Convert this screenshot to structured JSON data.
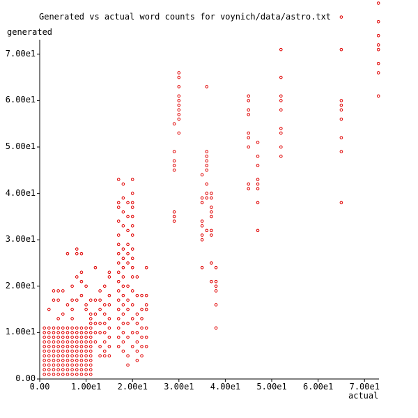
{
  "chart_data": {
    "type": "scatter",
    "title": "Generated vs actual word counts for voynich/data/astro.txt",
    "xlabel": "actual",
    "ylabel": "generated",
    "xlim": [
      0,
      73
    ],
    "ylim": [
      0,
      73
    ],
    "grid": false,
    "legend": null,
    "marker": "open-circle",
    "marker_color": "#e00000",
    "x_ticks": [
      "0.00",
      "1.00e1",
      "2.00e1",
      "3.00e1",
      "4.00e1",
      "5.00e1",
      "6.00e1",
      "7.00e1"
    ],
    "y_ticks": [
      "0.00",
      "1.00e1",
      "2.00e1",
      "3.00e1",
      "4.00e1",
      "5.00e1",
      "6.00e1",
      "7.00e1"
    ],
    "dense_region": {
      "description": "Near-complete integer grid of points for actual 1-11, generated 1-11",
      "x_range": [
        1,
        11
      ],
      "y_range": [
        1,
        11
      ]
    },
    "points": [
      [
        2,
        15
      ],
      [
        3,
        17
      ],
      [
        3,
        19
      ],
      [
        4,
        17
      ],
      [
        4,
        19
      ],
      [
        4,
        13
      ],
      [
        5,
        14
      ],
      [
        5,
        19
      ],
      [
        6,
        16
      ],
      [
        6,
        27
      ],
      [
        7,
        17
      ],
      [
        7,
        20
      ],
      [
        7,
        15
      ],
      [
        7,
        13
      ],
      [
        8,
        22
      ],
      [
        8,
        27
      ],
      [
        8,
        28
      ],
      [
        8,
        17
      ],
      [
        9,
        18
      ],
      [
        9,
        21
      ],
      [
        9,
        23
      ],
      [
        9,
        27
      ],
      [
        10,
        16
      ],
      [
        10,
        20
      ],
      [
        10,
        15
      ],
      [
        11,
        17
      ],
      [
        11,
        14
      ],
      [
        11,
        13
      ],
      [
        11,
        12
      ],
      [
        12,
        24
      ],
      [
        12,
        17
      ],
      [
        12,
        14
      ],
      [
        12,
        12
      ],
      [
        12,
        10
      ],
      [
        12,
        8
      ],
      [
        13,
        17
      ],
      [
        13,
        19
      ],
      [
        13,
        15
      ],
      [
        13,
        12
      ],
      [
        13,
        10
      ],
      [
        13,
        7
      ],
      [
        13,
        5
      ],
      [
        14,
        16
      ],
      [
        14,
        14
      ],
      [
        14,
        12
      ],
      [
        14,
        10
      ],
      [
        14,
        8
      ],
      [
        14,
        6
      ],
      [
        14,
        5
      ],
      [
        14,
        20
      ],
      [
        15,
        23
      ],
      [
        15,
        18
      ],
      [
        15,
        16
      ],
      [
        15,
        13
      ],
      [
        15,
        11
      ],
      [
        15,
        9
      ],
      [
        15,
        7
      ],
      [
        15,
        5
      ],
      [
        15,
        22
      ],
      [
        17,
        43
      ],
      [
        17,
        38
      ],
      [
        17,
        37
      ],
      [
        17,
        34
      ],
      [
        17,
        31
      ],
      [
        17,
        29
      ],
      [
        17,
        27
      ],
      [
        17,
        25
      ],
      [
        17,
        23
      ],
      [
        17,
        21
      ],
      [
        17,
        19
      ],
      [
        17,
        17
      ],
      [
        17,
        15
      ],
      [
        17,
        13
      ],
      [
        17,
        11
      ],
      [
        17,
        9
      ],
      [
        17,
        7
      ],
      [
        18,
        42
      ],
      [
        18,
        39
      ],
      [
        18,
        36
      ],
      [
        18,
        33
      ],
      [
        18,
        28
      ],
      [
        18,
        26
      ],
      [
        18,
        24
      ],
      [
        18,
        22
      ],
      [
        18,
        20
      ],
      [
        18,
        18
      ],
      [
        18,
        16
      ],
      [
        18,
        14
      ],
      [
        18,
        12
      ],
      [
        18,
        10
      ],
      [
        18,
        8
      ],
      [
        18,
        6
      ],
      [
        19,
        38
      ],
      [
        19,
        35
      ],
      [
        19,
        32
      ],
      [
        19,
        29
      ],
      [
        19,
        27
      ],
      [
        19,
        25
      ],
      [
        19,
        20
      ],
      [
        19,
        17
      ],
      [
        19,
        15
      ],
      [
        19,
        12
      ],
      [
        19,
        9
      ],
      [
        19,
        5
      ],
      [
        19,
        3
      ],
      [
        20,
        43
      ],
      [
        20,
        40
      ],
      [
        20,
        38
      ],
      [
        20,
        37
      ],
      [
        20,
        35
      ],
      [
        20,
        33
      ],
      [
        20,
        31
      ],
      [
        20,
        28
      ],
      [
        20,
        26
      ],
      [
        20,
        24
      ],
      [
        20,
        22
      ],
      [
        20,
        19
      ],
      [
        20,
        16
      ],
      [
        20,
        13
      ],
      [
        20,
        10
      ],
      [
        20,
        7
      ],
      [
        21,
        22
      ],
      [
        21,
        18
      ],
      [
        21,
        14
      ],
      [
        21,
        12
      ],
      [
        21,
        10
      ],
      [
        21,
        8
      ],
      [
        21,
        6
      ],
      [
        21,
        4
      ],
      [
        22,
        18
      ],
      [
        22,
        15
      ],
      [
        22,
        13
      ],
      [
        22,
        11
      ],
      [
        22,
        9
      ],
      [
        22,
        7
      ],
      [
        22,
        5
      ],
      [
        23,
        24
      ],
      [
        23,
        18
      ],
      [
        23,
        16
      ],
      [
        23,
        15
      ],
      [
        23,
        11
      ],
      [
        23,
        9
      ],
      [
        23,
        7
      ],
      [
        29,
        55
      ],
      [
        29,
        49
      ],
      [
        29,
        47
      ],
      [
        29,
        46
      ],
      [
        29,
        45
      ],
      [
        29,
        36
      ],
      [
        29,
        35
      ],
      [
        29,
        34
      ],
      [
        30,
        66
      ],
      [
        30,
        65
      ],
      [
        30,
        63
      ],
      [
        30,
        61
      ],
      [
        30,
        60
      ],
      [
        30,
        59
      ],
      [
        30,
        58
      ],
      [
        30,
        57
      ],
      [
        30,
        56
      ],
      [
        30,
        53
      ],
      [
        35,
        44
      ],
      [
        35,
        39
      ],
      [
        35,
        38
      ],
      [
        35,
        34
      ],
      [
        35,
        33
      ],
      [
        35,
        31
      ],
      [
        35,
        30
      ],
      [
        35,
        24
      ],
      [
        36,
        63
      ],
      [
        36,
        49
      ],
      [
        36,
        48
      ],
      [
        36,
        47
      ],
      [
        36,
        46
      ],
      [
        36,
        45
      ],
      [
        36,
        42
      ],
      [
        36,
        40
      ],
      [
        36,
        39
      ],
      [
        36,
        32
      ],
      [
        37,
        40
      ],
      [
        37,
        39
      ],
      [
        37,
        37
      ],
      [
        37,
        36
      ],
      [
        37,
        35
      ],
      [
        37,
        32
      ],
      [
        37,
        31
      ],
      [
        37,
        25
      ],
      [
        37,
        21
      ],
      [
        38,
        24
      ],
      [
        38,
        21
      ],
      [
        38,
        20
      ],
      [
        38,
        19
      ],
      [
        38,
        16
      ],
      [
        38,
        11
      ],
      [
        45,
        61
      ],
      [
        45,
        60
      ],
      [
        45,
        58
      ],
      [
        45,
        57
      ],
      [
        45,
        53
      ],
      [
        45,
        52
      ],
      [
        45,
        50
      ],
      [
        45,
        42
      ],
      [
        45,
        41
      ],
      [
        47,
        51
      ],
      [
        47,
        48
      ],
      [
        47,
        46
      ],
      [
        47,
        43
      ],
      [
        47,
        42
      ],
      [
        47,
        41
      ],
      [
        47,
        38
      ],
      [
        47,
        32
      ],
      [
        52,
        71
      ],
      [
        52,
        65
      ],
      [
        52,
        61
      ],
      [
        52,
        60
      ],
      [
        52,
        58
      ],
      [
        52,
        54
      ],
      [
        52,
        53
      ],
      [
        52,
        50
      ],
      [
        52,
        48
      ],
      [
        65,
        78
      ],
      [
        65,
        71
      ],
      [
        65,
        60
      ],
      [
        65,
        59
      ],
      [
        65,
        58
      ],
      [
        65,
        56
      ],
      [
        65,
        52
      ],
      [
        65,
        49
      ],
      [
        65,
        38
      ],
      [
        73,
        81
      ],
      [
        73,
        77
      ],
      [
        73,
        74
      ],
      [
        73,
        72
      ],
      [
        73,
        71
      ],
      [
        73,
        68
      ],
      [
        73,
        66
      ],
      [
        73,
        61
      ]
    ]
  }
}
